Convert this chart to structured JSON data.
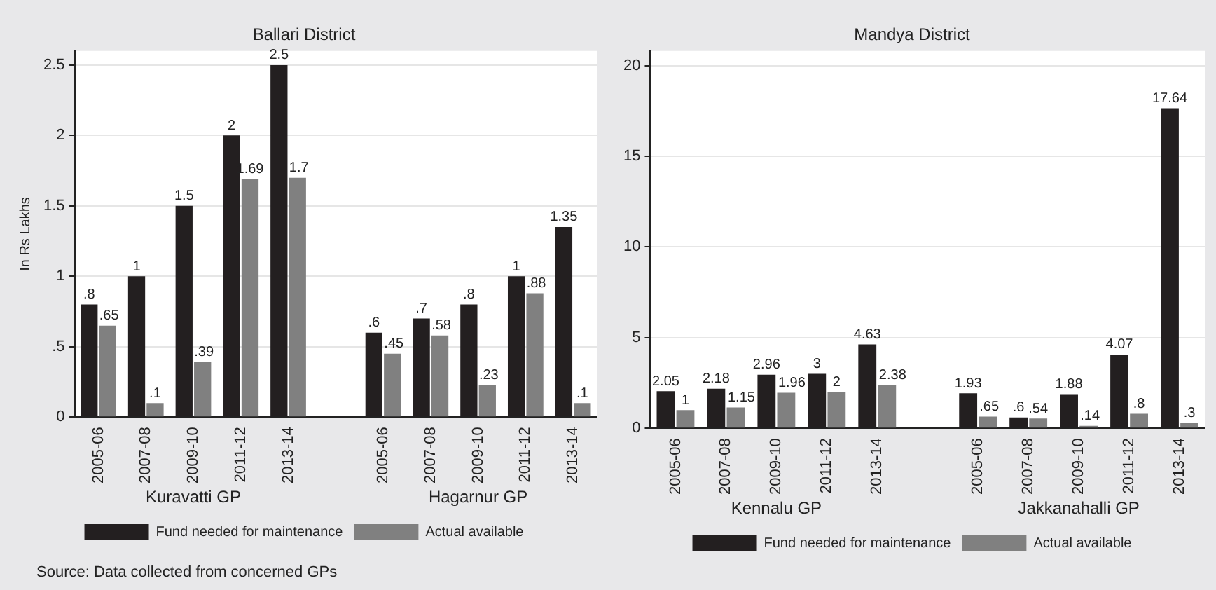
{
  "chart_data": [
    {
      "type": "bar",
      "title": "Ballari District",
      "ylabel": "In Rs Lakhs",
      "categories": [
        "2005-06",
        "2007-08",
        "2009-10",
        "2011-12",
        "2013-14",
        null,
        "2005-06",
        "2007-08",
        "2009-10",
        "2011-12",
        "2013-14"
      ],
      "series": [
        {
          "name": "Fund needed for maintenance",
          "color": "#231f20",
          "values": [
            0.8,
            1,
            1.5,
            2,
            2.5,
            null,
            0.6,
            0.7,
            0.8,
            1,
            1.35
          ],
          "value_labels": [
            ".8",
            "1",
            "1.5",
            "2",
            "2.5",
            null,
            ".6",
            ".7",
            ".8",
            "1",
            "1.35"
          ]
        },
        {
          "name": "Actual available",
          "color": "#808080",
          "values": [
            0.65,
            0.1,
            0.39,
            1.69,
            1.7,
            null,
            0.45,
            0.58,
            0.23,
            0.88,
            0.1
          ],
          "value_labels": [
            ".65",
            ".1",
            ".39",
            "1.69",
            "1.7",
            null,
            ".45",
            ".58",
            ".23",
            ".88",
            ".1"
          ]
        }
      ],
      "ylim": [
        0,
        2.6
      ],
      "yticks": [
        0,
        {
          "value": 0.5,
          "label": ".5"
        },
        1,
        1.5,
        2,
        2.5
      ],
      "grid": "y",
      "legend": "bottom",
      "annotations": [
        "Kuravatti GP",
        "Hagarnur GP",
        "Source: Data collected from concerned GPs"
      ]
    },
    {
      "type": "bar",
      "title": "Mandya District",
      "categories": [
        "2005-06",
        "2007-08",
        "2009-10",
        "2011-12",
        "2013-14",
        null,
        "2005-06",
        "2007-08",
        "2009-10",
        "2011-12",
        "2013-14"
      ],
      "series": [
        {
          "name": "Fund needed for maintenance",
          "color": "#231f20",
          "values": [
            2.05,
            2.18,
            2.96,
            3,
            4.63,
            null,
            1.93,
            0.6,
            1.88,
            4.07,
            17.64
          ],
          "value_labels": [
            "2.05",
            "2.18",
            "2.96",
            "3",
            "4.63",
            null,
            "1.93",
            ".6",
            "1.88",
            "4.07",
            "17.64"
          ]
        },
        {
          "name": "Actual available",
          "color": "#808080",
          "values": [
            1,
            1.15,
            1.96,
            2,
            2.38,
            null,
            0.65,
            0.54,
            0.14,
            0.8,
            0.3
          ],
          "value_labels": [
            "1",
            "1.15",
            "1.96",
            "2",
            "2.38",
            null,
            ".65",
            ".54",
            ".14",
            ".8",
            ".3"
          ]
        }
      ],
      "ylim": [
        0,
        20.8
      ],
      "yticks": [
        0,
        5,
        10,
        15,
        20
      ],
      "grid": "y",
      "legend": "bottom",
      "annotations": [
        "Kennalu GP",
        "Jakkanahalli GP"
      ]
    }
  ]
}
